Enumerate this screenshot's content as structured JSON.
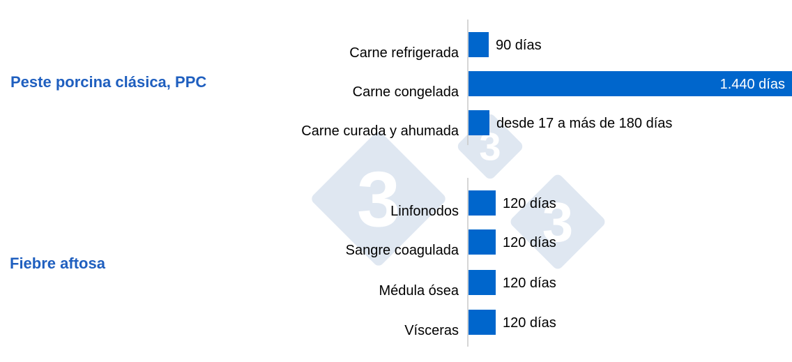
{
  "chart_data": {
    "type": "bar",
    "orientation": "horizontal",
    "groups": [
      {
        "name": "Peste porcina clásica, PPC",
        "items": [
          {
            "label": "Carne refrigerada",
            "value": 90,
            "value_label": "90 días"
          },
          {
            "label": "Carne congelada",
            "value": 1440,
            "value_label": "1.440 días"
          },
          {
            "label": "Carne curada y ahumada",
            "value": 90,
            "value_label": "desde 17 a más de 180 días"
          }
        ]
      },
      {
        "name": "Fiebre aftosa",
        "items": [
          {
            "label": "Linfonodos",
            "value": 120,
            "value_label": "120 días"
          },
          {
            "label": "Sangre coagulada",
            "value": 120,
            "value_label": "120 días"
          },
          {
            "label": "Médula ósea",
            "value": 120,
            "value_label": "120 días"
          },
          {
            "label": "Vísceras",
            "value": 120,
            "value_label": "120 días"
          }
        ]
      }
    ],
    "xlim": [
      0,
      1440
    ],
    "grid": false,
    "legend": "none"
  },
  "colors": {
    "bar": "#0066cc",
    "group_title": "#1f5fbf",
    "axis": "#c8c8c8",
    "value_label_inside": "#ffffff",
    "value_label_outside": "#000000",
    "watermark": "#dfe7f1"
  },
  "watermark_text": "3"
}
